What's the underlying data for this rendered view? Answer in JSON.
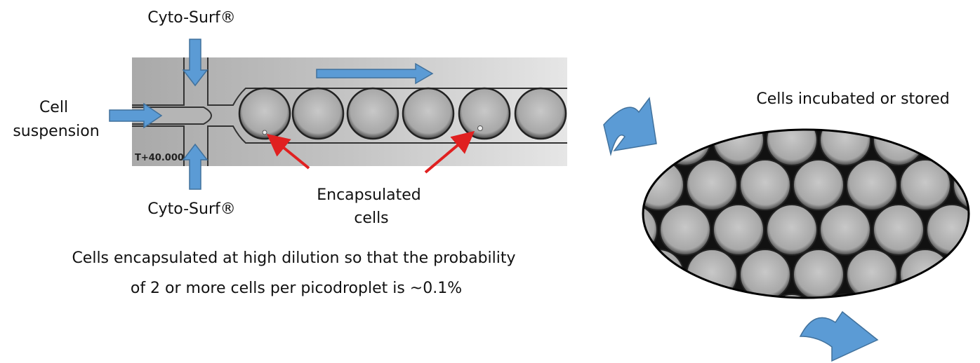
{
  "labels": {
    "surfactant_top": "Cyto-Surf®",
    "surfactant_bottom": "Cyto-Surf®",
    "cell_suspension": [
      "Cell",
      "suspension"
    ],
    "encapsulated": [
      "Encapsulated",
      "cells"
    ],
    "timestamp": "T+40.000",
    "caption": [
      "Cells encapsulated at high dilution so that the probability",
      "of 2 or more cells per picodroplet is ~0.1%"
    ],
    "incubated": "Cells incubated or stored"
  }
}
